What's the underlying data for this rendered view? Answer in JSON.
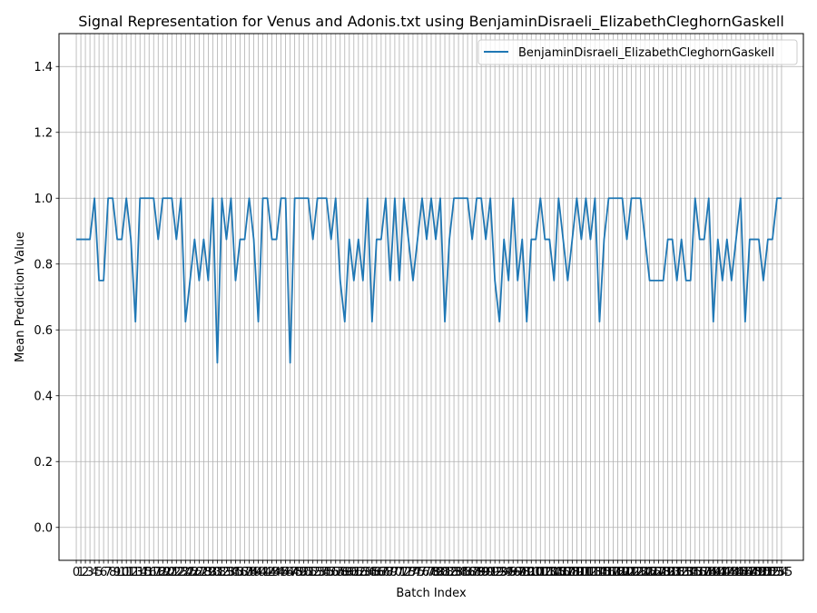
{
  "chart_data": {
    "type": "line",
    "title": "Signal Representation for Venus and Adonis.txt using BenjaminDisraeli_ElizabethCleghornGaskell",
    "xlabel": "Batch Index",
    "ylabel": "Mean Prediction Value",
    "xlim": [
      -3.8,
      159.8
    ],
    "ylim": [
      -0.1,
      1.5
    ],
    "yticks": [
      0.0,
      0.2,
      0.4,
      0.6,
      0.8,
      1.0,
      1.2,
      1.4
    ],
    "grid": true,
    "legend_position": "top-right",
    "series": [
      {
        "name": "BenjaminDisraeli_ElizabethCleghornGaskell",
        "color": "#1f77b4",
        "values": [
          0.875,
          0.875,
          0.875,
          0.875,
          1.0,
          0.75,
          0.75,
          1.0,
          1.0,
          0.875,
          0.875,
          1.0,
          0.875,
          0.625,
          1.0,
          1.0,
          1.0,
          1.0,
          0.875,
          1.0,
          1.0,
          1.0,
          0.875,
          1.0,
          0.625,
          0.75,
          0.875,
          0.75,
          0.875,
          0.75,
          1.0,
          0.5,
          1.0,
          0.875,
          1.0,
          0.75,
          0.875,
          0.875,
          1.0,
          0.875,
          0.625,
          1.0,
          1.0,
          0.875,
          0.875,
          1.0,
          1.0,
          0.5,
          1.0,
          1.0,
          1.0,
          1.0,
          0.875,
          1.0,
          1.0,
          1.0,
          0.875,
          1.0,
          0.75,
          0.625,
          0.875,
          0.75,
          0.875,
          0.75,
          1.0,
          0.625,
          0.875,
          0.875,
          1.0,
          0.75,
          1.0,
          0.75,
          1.0,
          0.875,
          0.75,
          0.875,
          1.0,
          0.875,
          1.0,
          0.875,
          1.0,
          0.625,
          0.875,
          1.0,
          1.0,
          1.0,
          1.0,
          0.875,
          1.0,
          1.0,
          0.875,
          1.0,
          0.75,
          0.625,
          0.875,
          0.75,
          1.0,
          0.75,
          0.875,
          0.625,
          0.875,
          0.875,
          1.0,
          0.875,
          0.875,
          0.75,
          1.0,
          0.875,
          0.75,
          0.875,
          1.0,
          0.875,
          1.0,
          0.875,
          1.0,
          0.625,
          0.875,
          1.0,
          1.0,
          1.0,
          1.0,
          0.875,
          1.0,
          1.0,
          1.0,
          0.875,
          0.75,
          0.75,
          0.75,
          0.75,
          0.875,
          0.875,
          0.75,
          0.875,
          0.75,
          0.75,
          1.0,
          0.875,
          0.875,
          1.0,
          0.625,
          0.875,
          0.75,
          0.875,
          0.75,
          0.875,
          1.0,
          0.625,
          0.875,
          0.875,
          0.875,
          0.75,
          0.875,
          0.875,
          1.0,
          1.0
        ]
      }
    ]
  }
}
